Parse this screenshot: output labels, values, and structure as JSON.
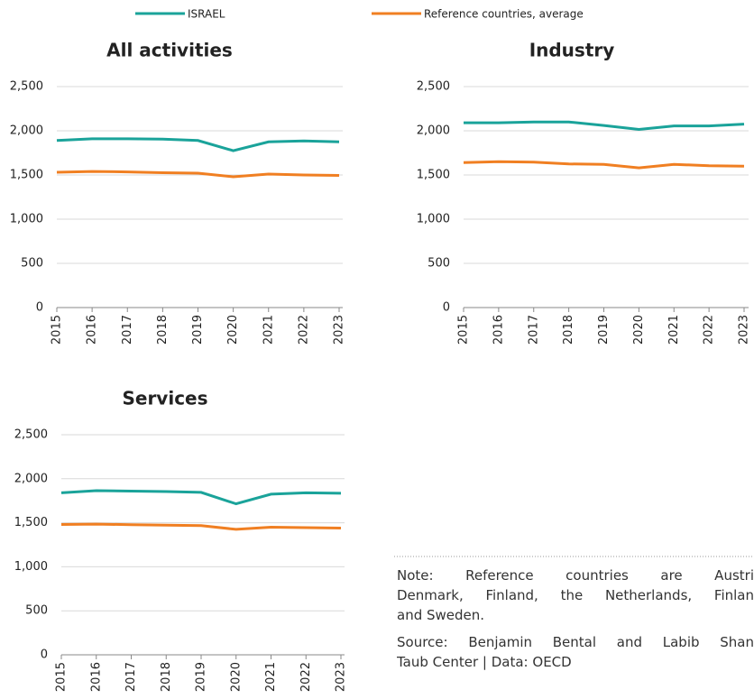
{
  "chart_data": [
    {
      "type": "line",
      "title": "All activities",
      "categories": [
        "2015",
        "2016",
        "2017",
        "2018",
        "2019",
        "2020",
        "2021",
        "2022",
        "2023"
      ],
      "series": [
        {
          "name": "ISRAEL",
          "color": "#1aa39a",
          "values": [
            1890,
            1910,
            1910,
            1905,
            1890,
            1775,
            1875,
            1885,
            1875
          ]
        },
        {
          "name": "Reference countries, average",
          "color": "#f07f22",
          "values": [
            1530,
            1540,
            1535,
            1525,
            1520,
            1480,
            1510,
            1500,
            1495
          ]
        }
      ],
      "ylim": [
        0,
        2500
      ],
      "yticks": [
        0,
        {
          "value": 500,
          "label": "500"
        },
        {
          "value": 1000,
          "label": "1,000"
        },
        {
          "value": 1500,
          "label": "1,500"
        },
        {
          "value": 2000,
          "label": "2,000"
        },
        {
          "value": 2500,
          "label": "2,500"
        }
      ],
      "grid": true
    },
    {
      "type": "line",
      "title": "Industry",
      "categories": [
        "2015",
        "2016",
        "2017",
        "2018",
        "2019",
        "2020",
        "2021",
        "2022",
        "2023"
      ],
      "series": [
        {
          "name": "ISRAEL",
          "color": "#1aa39a",
          "values": [
            2090,
            2090,
            2100,
            2100,
            2060,
            2015,
            2055,
            2055,
            2075
          ]
        },
        {
          "name": "Reference countries, average",
          "color": "#f07f22",
          "values": [
            1640,
            1650,
            1645,
            1625,
            1620,
            1580,
            1620,
            1605,
            1600
          ]
        }
      ],
      "ylim": [
        0,
        2500
      ],
      "yticks": [
        0,
        {
          "value": 500,
          "label": "500"
        },
        {
          "value": 1000,
          "label": "1,000"
        },
        {
          "value": 1500,
          "label": "1,500"
        },
        {
          "value": 2000,
          "label": "2,000"
        },
        {
          "value": 2500,
          "label": "2,500"
        }
      ],
      "grid": true
    },
    {
      "type": "line",
      "title": "Services",
      "categories": [
        "2015",
        "2016",
        "2017",
        "2018",
        "2019",
        "2020",
        "2021",
        "2022",
        "2023"
      ],
      "series": [
        {
          "name": "ISRAEL",
          "color": "#1aa39a",
          "values": [
            1840,
            1865,
            1860,
            1855,
            1845,
            1715,
            1825,
            1840,
            1835
          ]
        },
        {
          "name": "Reference countries, average",
          "color": "#f07f22",
          "values": [
            1480,
            1485,
            1478,
            1473,
            1468,
            1425,
            1450,
            1445,
            1440
          ]
        }
      ],
      "ylim": [
        0,
        2500
      ],
      "yticks": [
        0,
        {
          "value": 500,
          "label": "500"
        },
        {
          "value": 1000,
          "label": "1,000"
        },
        {
          "value": 1500,
          "label": "1,500"
        },
        {
          "value": 2000,
          "label": "2,000"
        },
        {
          "value": 2500,
          "label": "2,500"
        }
      ],
      "grid": true
    }
  ],
  "note": [
    "Note: Reference countries are Austri",
    "Denmark, Finland, the Netherlands, Finlan",
    "and Sweden."
  ],
  "source": [
    "Source: Benjamin Bental and Labib Shan",
    "Taub Center | Data: OECD"
  ]
}
